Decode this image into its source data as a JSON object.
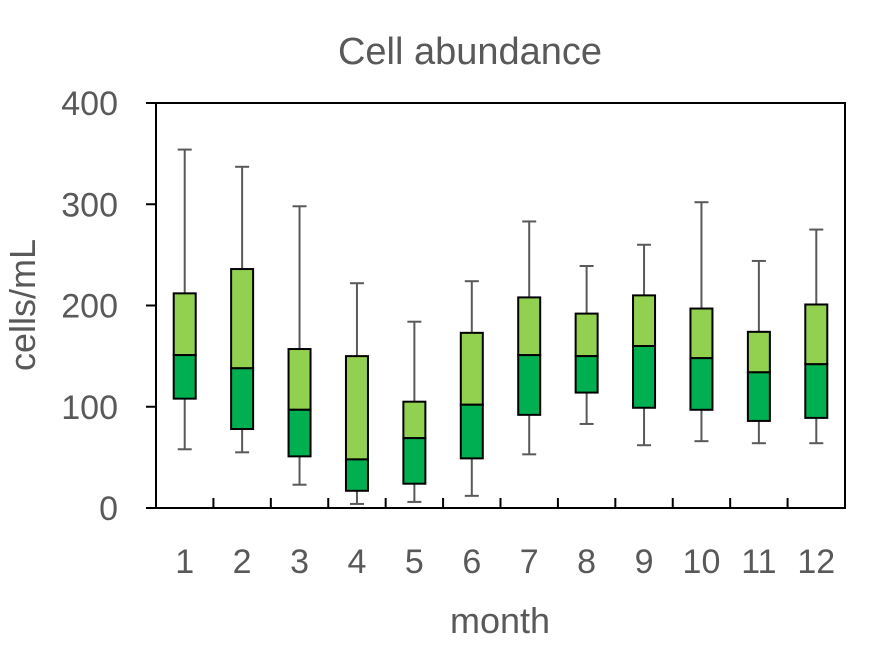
{
  "chart_data": {
    "type": "boxplot",
    "title": "Cell abundance",
    "xlabel": "month",
    "ylabel": "cells/mL",
    "ylim": [
      0,
      400
    ],
    "yticks": [
      "0",
      "100",
      "200",
      "300",
      "400"
    ],
    "categories": [
      "1",
      "2",
      "3",
      "4",
      "5",
      "6",
      "7",
      "8",
      "9",
      "10",
      "11",
      "12"
    ],
    "grid": false,
    "legend": "none",
    "colors": {
      "upper_box": "#92d050",
      "lower_box": "#00b050",
      "whisker": "#595959",
      "outline": "#000000"
    },
    "boxes": [
      {
        "month": "1",
        "min": 58,
        "q1": 108,
        "median": 151,
        "q3": 212,
        "max": 354
      },
      {
        "month": "2",
        "min": 55,
        "q1": 78,
        "median": 138,
        "q3": 236,
        "max": 337
      },
      {
        "month": "3",
        "min": 23,
        "q1": 51,
        "median": 97,
        "q3": 157,
        "max": 298
      },
      {
        "month": "4",
        "min": 4,
        "q1": 17,
        "median": 48,
        "q3": 150,
        "max": 222
      },
      {
        "month": "5",
        "min": 6,
        "q1": 24,
        "median": 69,
        "q3": 105,
        "max": 184
      },
      {
        "month": "6",
        "min": 12,
        "q1": 49,
        "median": 102,
        "q3": 173,
        "max": 224
      },
      {
        "month": "7",
        "min": 53,
        "q1": 92,
        "median": 151,
        "q3": 208,
        "max": 283
      },
      {
        "month": "8",
        "min": 83,
        "q1": 114,
        "median": 150,
        "q3": 192,
        "max": 239
      },
      {
        "month": "9",
        "min": 62,
        "q1": 99,
        "median": 160,
        "q3": 210,
        "max": 260
      },
      {
        "month": "10",
        "min": 66,
        "q1": 97,
        "median": 148,
        "q3": 197,
        "max": 302
      },
      {
        "month": "11",
        "min": 64,
        "q1": 86,
        "median": 134,
        "q3": 174,
        "max": 244
      },
      {
        "month": "12",
        "min": 64,
        "q1": 89,
        "median": 142,
        "q3": 201,
        "max": 275
      }
    ]
  }
}
